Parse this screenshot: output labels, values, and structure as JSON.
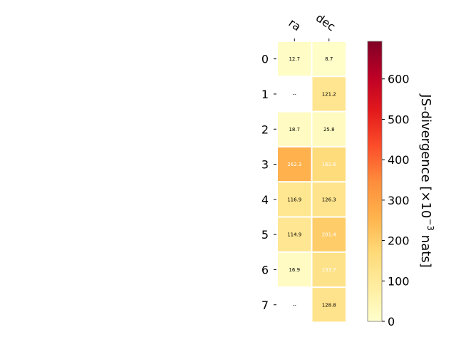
{
  "chart_data": {
    "type": "heatmap",
    "columns": [
      "ra",
      "dec"
    ],
    "rows": [
      "0",
      "1",
      "2",
      "3",
      "4",
      "5",
      "6",
      "7"
    ],
    "values": [
      [
        12.7,
        8.7
      ],
      [
        null,
        121.2
      ],
      [
        18.7,
        25.8
      ],
      [
        262.3,
        162.6
      ],
      [
        116.9,
        126.3
      ],
      [
        114.9,
        201.4
      ],
      [
        16.9,
        133.7
      ],
      [
        null,
        128.8
      ]
    ],
    "cell_labels": [
      [
        "12.7",
        "8.7"
      ],
      [
        "--",
        "121.2"
      ],
      [
        "18.7",
        "25.8"
      ],
      [
        "262.3",
        "162.6"
      ],
      [
        "116.9",
        "126.3"
      ],
      [
        "114.9",
        "201.4"
      ],
      [
        "16.9",
        "133.7"
      ],
      [
        "--",
        "128.8"
      ]
    ],
    "colorbar": {
      "label_main": "JS-divergence [×10",
      "label_exp": "−3",
      "label_unit": " nats]",
      "range": [
        0,
        693
      ],
      "ticks": [
        0,
        100,
        200,
        300,
        400,
        500,
        600
      ],
      "tick_labels": [
        "0",
        "100",
        "200",
        "300",
        "400",
        "500",
        "600"
      ],
      "colormap": "YlOrRd"
    },
    "grid": false
  }
}
